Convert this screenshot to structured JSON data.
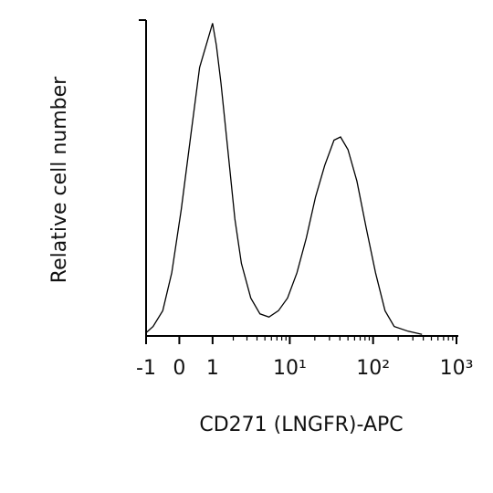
{
  "chart_data": {
    "type": "line",
    "xlabel": "CD271 (LNGFR)-APC",
    "ylabel": "Relative cell number",
    "xscale": "biexponential",
    "x": [
      -1.0,
      -0.75,
      -0.45,
      -0.2,
      0.05,
      0.3,
      0.56,
      0.8,
      1.0,
      1.15,
      1.35,
      1.67,
      2.1,
      2.55,
      3.35,
      4.35,
      5.6,
      7.3,
      9.4,
      12.2,
      15.8,
      20.4,
      26.3,
      34,
      40.7,
      50,
      64,
      83,
      107,
      139,
      179,
      263,
      386
    ],
    "values": [
      1,
      3,
      8,
      20,
      40,
      63,
      85,
      93,
      99,
      92,
      80,
      60,
      37,
      23,
      12,
      7,
      6,
      8,
      12,
      20,
      31,
      44,
      54,
      62,
      63,
      59,
      49,
      34,
      20,
      8,
      3,
      1.5,
      0.5
    ],
    "color": "#000000",
    "xlim": [
      -1,
      1000
    ],
    "ylim": [
      0,
      100
    ],
    "xticks": [
      -1,
      0,
      1,
      {
        "value": 10,
        "label": "10¹"
      },
      {
        "value": 100,
        "label": "10²"
      },
      {
        "value": 1000,
        "label": "10³"
      }
    ],
    "xminorticks": [
      2,
      3,
      4,
      5,
      6,
      7,
      8,
      9,
      20,
      30,
      40,
      50,
      60,
      70,
      80,
      90,
      200,
      300,
      400,
      500,
      600,
      700,
      800,
      900
    ]
  }
}
